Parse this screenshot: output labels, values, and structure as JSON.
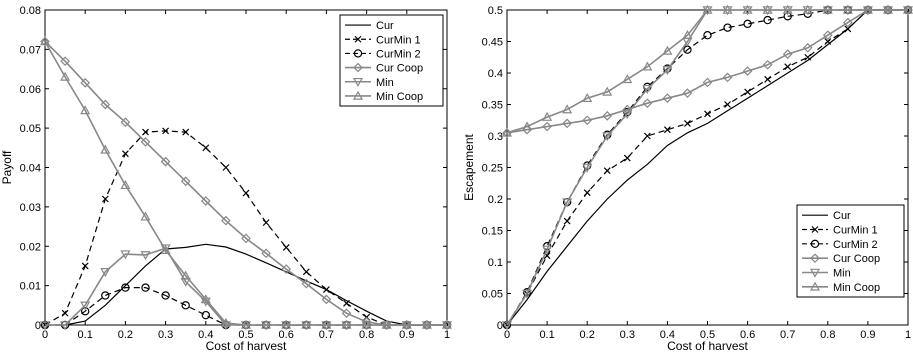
{
  "chart_data": [
    {
      "type": "line",
      "xlabel": "Cost of harvest",
      "ylabel": "Payoff",
      "xlim": [
        0,
        1
      ],
      "ylim": [
        0,
        0.08
      ],
      "xticks": [
        "0",
        "0.1",
        "0.2",
        "0.3",
        "0.4",
        "0.5",
        "0.6",
        "0.7",
        "0.8",
        "0.9",
        "1"
      ],
      "yticks": [
        "0",
        "0.01",
        "0.02",
        "0.03",
        "0.04",
        "0.05",
        "0.06",
        "0.07",
        "0.08"
      ],
      "legend_position": "top-right",
      "x": [
        0,
        0.05,
        0.1,
        0.15,
        0.2,
        0.25,
        0.3,
        0.35,
        0.4,
        0.45,
        0.5,
        0.55,
        0.6,
        0.65,
        0.7,
        0.75,
        0.8,
        0.85,
        0.9,
        0.95,
        1
      ],
      "series": [
        {
          "name": "Cur",
          "color": "#000000",
          "dash": "solid",
          "marker": "none",
          "values": [
            0,
            0,
            0.001,
            0.005,
            0.01,
            0.015,
            0.0193,
            0.0197,
            0.0205,
            0.0198,
            0.018,
            0.0158,
            0.0135,
            0.0112,
            0.009,
            0.0062,
            0.0035,
            0.001,
            0,
            0,
            0
          ]
        },
        {
          "name": "CurMin  1",
          "color": "#000000",
          "dash": "dash",
          "marker": "x",
          "values": [
            0,
            0.003,
            0.015,
            0.032,
            0.0435,
            0.049,
            0.0493,
            0.049,
            0.045,
            0.04,
            0.0335,
            0.026,
            0.0197,
            0.0135,
            0.009,
            0.0055,
            0.002,
            0,
            0,
            0,
            0
          ]
        },
        {
          "name": "CurMin  2",
          "color": "#000000",
          "dash": "dash",
          "marker": "circle",
          "values": [
            0,
            0,
            0.0035,
            0.0075,
            0.0095,
            0.0095,
            0.0075,
            0.005,
            0.0025,
            0,
            0,
            0,
            0,
            0,
            0,
            0,
            0,
            0,
            0,
            0,
            0
          ]
        },
        {
          "name": "Cur Coop",
          "color": "#888888",
          "dash": "solid",
          "marker": "diamond",
          "values": [
            0.072,
            0.067,
            0.0615,
            0.056,
            0.0515,
            0.0465,
            0.0415,
            0.0365,
            0.0315,
            0.0265,
            0.022,
            0.0182,
            0.0142,
            0.0105,
            0.0065,
            0.003,
            0.0008,
            0,
            0,
            0,
            0
          ]
        },
        {
          "name": "Min",
          "color": "#888888",
          "dash": "solid",
          "marker": "triangle-down",
          "values": [
            0,
            0,
            0.005,
            0.0135,
            0.018,
            0.0178,
            0.0195,
            0.011,
            0.006,
            0,
            0,
            0,
            0,
            0,
            0,
            0,
            0,
            0,
            0,
            0,
            0
          ]
        },
        {
          "name": "Min Coop",
          "color": "#888888",
          "dash": "solid",
          "marker": "triangle-up",
          "values": [
            0.072,
            0.063,
            0.0545,
            0.0445,
            0.0355,
            0.0275,
            0.019,
            0.0125,
            0.0065,
            0.0005,
            0,
            0,
            0,
            0,
            0,
            0,
            0,
            0,
            0,
            0,
            0
          ]
        }
      ]
    },
    {
      "type": "line",
      "xlabel": "Cost of harvest",
      "ylabel": "Escapement",
      "xlim": [
        0,
        1
      ],
      "ylim": [
        0,
        0.5
      ],
      "xticks": [
        "0",
        "0.1",
        "0.2",
        "0.3",
        "0.4",
        "0.5",
        "0.6",
        "0.7",
        "0.8",
        "0.9",
        "1"
      ],
      "yticks": [
        "0",
        "0.05",
        "0.1",
        "0.15",
        "0.2",
        "0.25",
        "0.3",
        "0.35",
        "0.4",
        "0.45",
        "0.5"
      ],
      "legend_position": "bottom-right",
      "x": [
        0,
        0.05,
        0.1,
        0.15,
        0.2,
        0.25,
        0.3,
        0.35,
        0.4,
        0.45,
        0.5,
        0.55,
        0.6,
        0.65,
        0.7,
        0.75,
        0.8,
        0.85,
        0.9,
        0.95,
        1
      ],
      "series": [
        {
          "name": "Cur",
          "color": "#000000",
          "dash": "solid",
          "marker": "none",
          "values": [
            0,
            0.04,
            0.085,
            0.125,
            0.165,
            0.2,
            0.23,
            0.255,
            0.285,
            0.305,
            0.32,
            0.34,
            0.36,
            0.38,
            0.4,
            0.42,
            0.445,
            0.47,
            0.5,
            0.5,
            0.5
          ]
        },
        {
          "name": "CurMin  1",
          "color": "#000000",
          "dash": "dash",
          "marker": "x",
          "values": [
            0,
            0.05,
            0.11,
            0.165,
            0.21,
            0.245,
            0.265,
            0.3,
            0.31,
            0.32,
            0.335,
            0.35,
            0.37,
            0.39,
            0.41,
            0.425,
            0.45,
            0.47,
            0.5,
            0.5,
            0.5
          ]
        },
        {
          "name": "CurMin  2",
          "color": "#000000",
          "dash": "dash",
          "marker": "circle",
          "values": [
            0,
            0.052,
            0.125,
            0.195,
            0.253,
            0.302,
            0.338,
            0.378,
            0.407,
            0.437,
            0.46,
            0.472,
            0.478,
            0.484,
            0.49,
            0.494,
            0.5,
            0.5,
            0.5,
            0.5,
            0.5
          ]
        },
        {
          "name": "Cur Coop",
          "color": "#888888",
          "dash": "solid",
          "marker": "diamond",
          "values": [
            0.305,
            0.31,
            0.315,
            0.32,
            0.325,
            0.332,
            0.342,
            0.352,
            0.36,
            0.368,
            0.385,
            0.393,
            0.403,
            0.413,
            0.43,
            0.44,
            0.46,
            0.48,
            0.5,
            0.5,
            0.5
          ]
        },
        {
          "name": "Min",
          "color": "#888888",
          "dash": "solid",
          "marker": "triangle-down",
          "values": [
            0,
            0.05,
            0.12,
            0.195,
            0.25,
            0.3,
            0.335,
            0.375,
            0.405,
            0.45,
            0.5,
            0.5,
            0.5,
            0.5,
            0.5,
            0.5,
            0.5,
            0.5,
            0.5,
            0.5,
            0.5
          ]
        },
        {
          "name": "Min Coop",
          "color": "#888888",
          "dash": "solid",
          "marker": "triangle-up",
          "values": [
            0.305,
            0.315,
            0.33,
            0.342,
            0.36,
            0.37,
            0.39,
            0.41,
            0.435,
            0.46,
            0.5,
            0.5,
            0.5,
            0.5,
            0.5,
            0.5,
            0.5,
            0.5,
            0.5,
            0.5,
            0.5
          ]
        }
      ]
    }
  ]
}
